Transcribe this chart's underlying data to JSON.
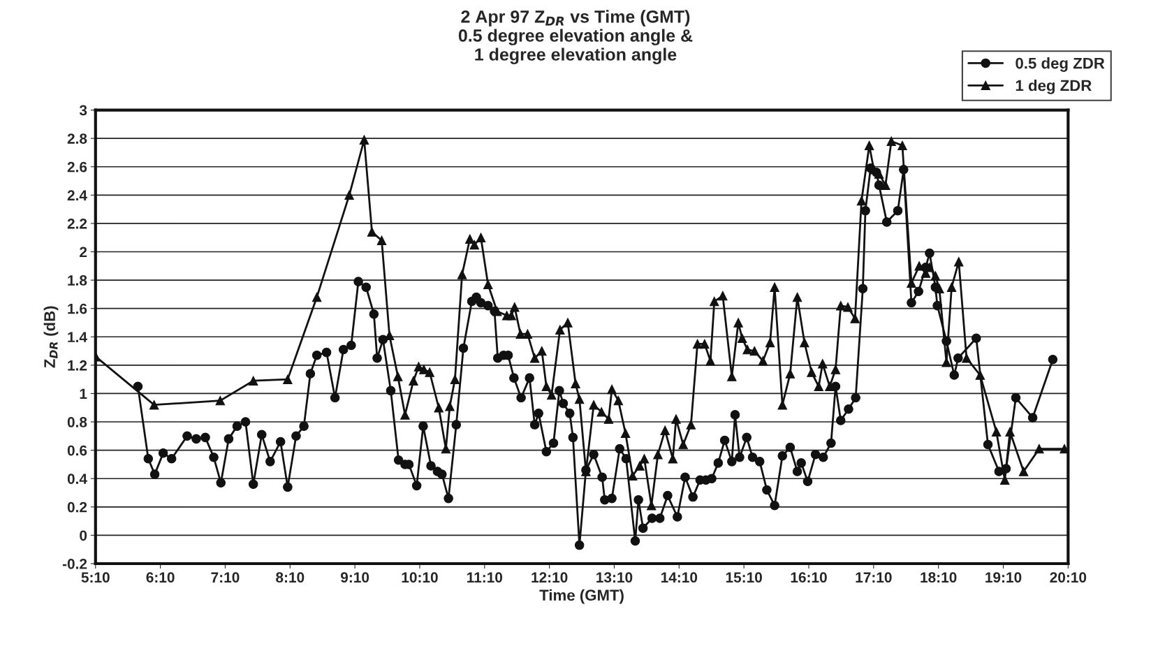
{
  "chart_data": {
    "type": "line",
    "title": "2 Apr 97 Z$_{DR}$ vs Time (GMT)\n0.5 degree elevation angle &\n1 degree elevation angle",
    "xlabel": "Time (GMT)",
    "ylabel": "Z$_{DR}$ (dB)",
    "xlim": [
      5.1667,
      20.1667
    ],
    "ylim": [
      -0.2,
      3
    ],
    "xticks": [
      {
        "value": 5.1667,
        "label": "5:10"
      },
      {
        "value": 6.1667,
        "label": "6:10"
      },
      {
        "value": 7.1667,
        "label": "7:10"
      },
      {
        "value": 8.1667,
        "label": "8:10"
      },
      {
        "value": 9.1667,
        "label": "9:10"
      },
      {
        "value": 10.1667,
        "label": "10:10"
      },
      {
        "value": 11.1667,
        "label": "11:10"
      },
      {
        "value": 12.1667,
        "label": "12:10"
      },
      {
        "value": 13.1667,
        "label": "13:10"
      },
      {
        "value": 14.1667,
        "label": "14:10"
      },
      {
        "value": 15.1667,
        "label": "15:10"
      },
      {
        "value": 16.1667,
        "label": "16:10"
      },
      {
        "value": 17.1667,
        "label": "17:10"
      },
      {
        "value": 18.1667,
        "label": "18:10"
      },
      {
        "value": 19.1667,
        "label": "19:10"
      },
      {
        "value": 20.1667,
        "label": "20:10"
      }
    ],
    "yticks": [
      {
        "value": -0.2,
        "label": "-0.2"
      },
      0,
      0.2,
      0.4,
      0.6,
      0.8,
      1,
      1.2,
      1.4,
      1.6,
      1.8,
      2,
      2.2,
      2.4,
      2.6,
      2.8,
      3
    ],
    "grid": "y",
    "legend": "top right",
    "series": [
      {
        "name": "0.5 deg ZDR",
        "color": "#111111",
        "marker": "circle",
        "x": [
          5.82,
          5.98,
          6.08,
          6.21,
          6.34,
          6.58,
          6.72,
          6.86,
          6.99,
          7.1,
          7.22,
          7.35,
          7.48,
          7.6,
          7.73,
          7.86,
          8.02,
          8.13,
          8.26,
          8.38,
          8.48,
          8.58,
          8.73,
          8.86,
          8.99,
          9.11,
          9.22,
          9.34,
          9.46,
          9.51,
          9.6,
          9.72,
          9.84,
          9.94,
          10.0,
          10.12,
          10.22,
          10.34,
          10.44,
          10.51,
          10.61,
          10.73,
          10.84,
          10.97,
          11.04,
          11.11,
          11.22,
          11.32,
          11.37,
          11.46,
          11.53,
          11.62,
          11.73,
          11.86,
          11.94,
          12.0,
          12.12,
          12.23,
          12.32,
          12.38,
          12.48,
          12.53,
          12.63,
          12.73,
          12.85,
          12.98,
          13.02,
          13.13,
          13.25,
          13.35,
          13.49,
          13.54,
          13.61,
          13.75,
          13.87,
          13.99,
          14.14,
          14.26,
          14.38,
          14.49,
          14.58,
          14.67,
          14.77,
          14.87,
          14.98,
          15.03,
          15.1,
          15.21,
          15.3,
          15.41,
          15.52,
          15.64,
          15.76,
          15.88,
          15.99,
          16.05,
          16.15,
          16.27,
          16.39,
          16.51,
          16.58,
          16.66,
          16.78,
          16.89,
          17.0,
          17.04,
          17.12,
          17.21,
          17.25,
          17.37,
          17.54,
          17.63,
          17.75,
          17.86,
          17.97,
          18.03,
          18.12,
          18.15,
          18.29,
          18.41,
          18.47,
          18.75,
          18.93,
          19.1,
          19.21,
          19.36,
          19.62,
          19.93
        ],
        "values": [
          1.05,
          0.54,
          0.43,
          0.58,
          0.54,
          0.7,
          0.68,
          0.69,
          0.55,
          0.37,
          0.68,
          0.77,
          0.8,
          0.36,
          0.71,
          0.52,
          0.66,
          0.34,
          0.7,
          0.77,
          1.14,
          1.27,
          1.29,
          0.97,
          1.31,
          1.34,
          1.79,
          1.75,
          1.56,
          1.25,
          1.38,
          1.02,
          0.53,
          0.5,
          0.5,
          0.35,
          0.77,
          0.49,
          0.45,
          0.43,
          0.26,
          0.78,
          1.32,
          1.65,
          1.68,
          1.64,
          1.62,
          1.58,
          1.25,
          1.27,
          1.27,
          1.11,
          0.97,
          1.11,
          0.78,
          0.86,
          0.59,
          0.65,
          1.02,
          0.93,
          0.86,
          0.69,
          -0.07,
          0.46,
          0.57,
          0.41,
          0.25,
          0.26,
          0.61,
          0.54,
          -0.04,
          0.25,
          0.05,
          0.12,
          0.12,
          0.28,
          0.13,
          0.41,
          0.27,
          0.39,
          0.39,
          0.4,
          0.51,
          0.67,
          0.52,
          0.85,
          0.55,
          0.69,
          0.55,
          0.52,
          0.32,
          0.21,
          0.56,
          0.62,
          0.45,
          0.51,
          0.38,
          0.57,
          0.55,
          0.65,
          1.05,
          0.81,
          0.89,
          0.97,
          1.74,
          2.29,
          2.59,
          2.56,
          2.47,
          2.21,
          2.29,
          2.58,
          1.64,
          1.72,
          1.89,
          1.99,
          1.75,
          1.62,
          1.37,
          1.13,
          1.25,
          1.39,
          0.64,
          0.45,
          0.47,
          0.97,
          0.83,
          1.24
        ]
      },
      {
        "name": "1 deg ZDR",
        "color": "#111111",
        "marker": "triangle",
        "x": [
          5.17,
          6.07,
          7.09,
          7.6,
          8.13,
          8.58,
          9.08,
          9.31,
          9.43,
          9.58,
          9.7,
          9.83,
          9.94,
          10.07,
          10.15,
          10.23,
          10.32,
          10.46,
          10.57,
          10.63,
          10.71,
          10.82,
          10.94,
          11.01,
          11.11,
          11.22,
          11.36,
          11.51,
          11.58,
          11.63,
          11.72,
          11.83,
          11.94,
          12.05,
          12.12,
          12.2,
          12.33,
          12.45,
          12.57,
          12.63,
          12.73,
          12.85,
          12.97,
          13.08,
          13.13,
          13.23,
          13.34,
          13.45,
          13.56,
          13.63,
          13.74,
          13.84,
          13.95,
          14.07,
          14.12,
          14.23,
          14.35,
          14.45,
          14.56,
          14.65,
          14.71,
          14.84,
          14.98,
          15.08,
          15.14,
          15.22,
          15.33,
          15.46,
          15.57,
          15.64,
          15.76,
          15.88,
          15.99,
          16.1,
          16.21,
          16.32,
          16.38,
          16.49,
          16.58,
          16.66,
          16.77,
          16.88,
          16.98,
          17.1,
          17.17,
          17.25,
          17.35,
          17.44,
          17.61,
          17.75,
          17.87,
          17.97,
          18.03,
          18.12,
          18.18,
          18.29,
          18.37,
          18.48,
          18.6,
          18.81,
          19.06,
          19.19,
          19.27,
          19.48,
          19.72,
          20.11
        ],
        "values": [
          1.26,
          0.92,
          0.95,
          1.09,
          1.1,
          1.68,
          2.4,
          2.79,
          2.14,
          2.08,
          1.41,
          1.12,
          0.85,
          1.09,
          1.19,
          1.17,
          1.15,
          0.9,
          0.61,
          0.91,
          1.1,
          1.84,
          2.09,
          2.05,
          2.1,
          1.77,
          1.58,
          1.55,
          1.55,
          1.61,
          1.42,
          1.42,
          1.25,
          1.3,
          1.05,
          0.99,
          1.45,
          1.5,
          1.07,
          0.96,
          0.45,
          0.92,
          0.87,
          0.82,
          1.03,
          0.95,
          0.72,
          0.42,
          0.49,
          0.54,
          0.21,
          0.57,
          0.74,
          0.54,
          0.82,
          0.64,
          0.78,
          1.35,
          1.35,
          1.23,
          1.65,
          1.69,
          1.12,
          1.5,
          1.39,
          1.31,
          1.3,
          1.23,
          1.36,
          1.75,
          0.92,
          1.14,
          1.68,
          1.36,
          1.15,
          1.05,
          1.21,
          1.05,
          1.17,
          1.62,
          1.61,
          1.53,
          2.36,
          2.75,
          2.58,
          2.55,
          2.47,
          2.78,
          2.75,
          1.78,
          1.9,
          1.85,
          1.89,
          1.83,
          1.74,
          1.22,
          1.75,
          1.93,
          1.25,
          1.13,
          0.73,
          0.39,
          0.73,
          0.45,
          0.61,
          0.61
        ]
      }
    ]
  }
}
